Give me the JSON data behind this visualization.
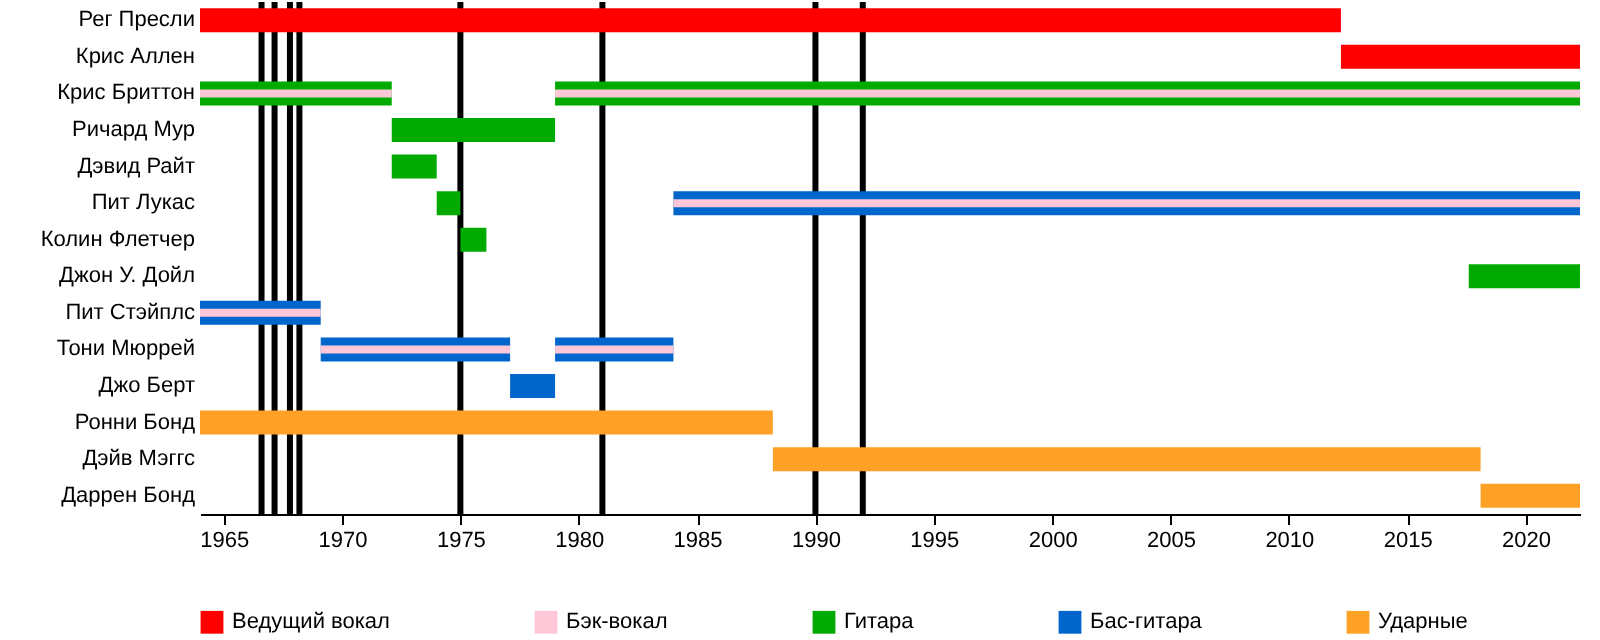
{
  "chart_data": {
    "type": "bar",
    "orientation": "horizontal",
    "categories": [
      "Рег Пресли",
      "Крис Аллен",
      "Крис Бриттон",
      "Ричард Мур",
      "Дэвид Райт",
      "Пит Лукас",
      "Колин Флетчер",
      "Джон У. Дойл",
      "Пит Стэйплс",
      "Тони Мюррей",
      "Джо Берт",
      "Ронни Бонд",
      "Дэйв Мэггс",
      "Даррен Бонд"
    ],
    "series": [
      {
        "name": "Ведущий вокал",
        "color": "#ff0000",
        "base": [
          1964,
          2012.2,
          null,
          null,
          null,
          null,
          null,
          null,
          null,
          null,
          null,
          null,
          null,
          null
        ],
        "values": [
          48.2,
          10.1,
          null,
          null,
          null,
          null,
          null,
          null,
          null,
          null,
          null,
          null,
          null,
          null
        ]
      },
      {
        "name": "Бэк-вокал",
        "color": "#ffc8d8",
        "base": [
          null,
          null,
          1964,
          null,
          null,
          1984.0,
          null,
          null,
          1964,
          1969.1,
          null,
          null,
          null,
          null
        ],
        "values": [
          null,
          null,
          8.1,
          null,
          null,
          38.3,
          null,
          null,
          5.1,
          8.0,
          null,
          null,
          null,
          null
        ]
      },
      {
        "name": "Гитара",
        "color": "#00aa00",
        "base": [
          null,
          null,
          1964,
          1972.1,
          1972.1,
          1974.0,
          1975.0,
          2017.6,
          null,
          null,
          null,
          null,
          null,
          null
        ],
        "values": [
          null,
          null,
          8.1,
          6.9,
          1.9,
          1.0,
          1.1,
          4.7,
          null,
          null,
          null,
          null,
          null,
          null
        ]
      },
      {
        "name": "Бас-гитара",
        "color": "#0066cc",
        "base": [
          null,
          null,
          null,
          null,
          null,
          1984.0,
          null,
          null,
          1964,
          1969.1,
          1977.1,
          null,
          null,
          null
        ],
        "values": [
          null,
          null,
          null,
          null,
          null,
          38.3,
          null,
          null,
          5.1,
          8.0,
          1.9,
          null,
          null,
          null
        ]
      },
      {
        "name": "Ударные",
        "color": "#ffa126",
        "base": [
          null,
          null,
          null,
          null,
          null,
          null,
          null,
          null,
          null,
          null,
          null,
          1964,
          1988.2,
          2018.1
        ],
        "values": [
          null,
          null,
          null,
          null,
          null,
          null,
          null,
          null,
          null,
          null,
          null,
          24.2,
          29.9,
          4.2
        ]
      },
      {
        "color": "#00aa00",
        "base": [
          null,
          null,
          1979.0,
          null,
          null,
          null,
          null,
          null,
          null,
          null,
          null,
          null,
          null,
          null
        ],
        "values": [
          null,
          null,
          43.3,
          null,
          null,
          null,
          null,
          null,
          null,
          null,
          null,
          null,
          null,
          null
        ]
      },
      {
        "color": "#0066cc",
        "base": [
          null,
          null,
          null,
          null,
          null,
          null,
          null,
          null,
          null,
          1979.0,
          null,
          null,
          null,
          null
        ],
        "values": [
          null,
          null,
          null,
          null,
          null,
          null,
          null,
          null,
          null,
          5.0,
          null,
          null,
          null,
          null
        ]
      },
      {
        "color": "#ffc8d8",
        "base": [
          null,
          null,
          1979.0,
          null,
          null,
          null,
          null,
          null,
          null,
          1979.0,
          null,
          null,
          null,
          null
        ],
        "values": [
          null,
          null,
          43.3,
          null,
          null,
          null,
          null,
          null,
          null,
          5.0,
          null,
          null,
          null,
          null
        ]
      }
    ],
    "xlim": [
      1964,
      2022.3
    ],
    "xticks": [
      1965,
      1970,
      1975,
      1980,
      1985,
      1990,
      1995,
      2000,
      2005,
      2010,
      2015,
      2020
    ],
    "ref_lines": [
      {
        "axis": "x",
        "value": 1966.6
      },
      {
        "axis": "x",
        "value": 1967.15
      },
      {
        "axis": "x",
        "value": 1967.8
      },
      {
        "axis": "x",
        "value": 1968.2
      },
      {
        "axis": "x",
        "value": 1975.0
      },
      {
        "axis": "x",
        "value": 1981.0
      },
      {
        "axis": "x",
        "value": 1990.0
      },
      {
        "axis": "x",
        "value": 1992.0
      }
    ],
    "grid": false,
    "legend": "bottom"
  }
}
